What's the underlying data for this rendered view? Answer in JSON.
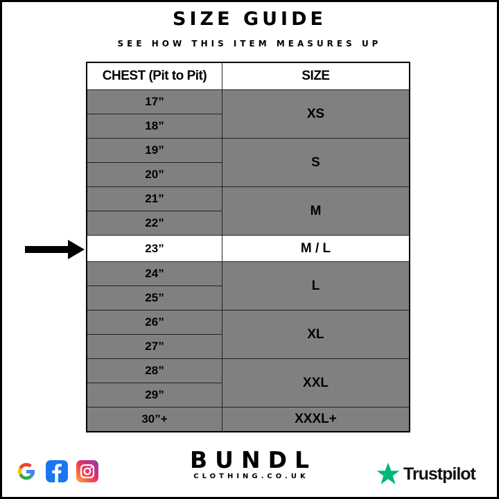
{
  "header": {
    "title": "SIZE GUIDE",
    "subtitle": "SEE HOW THIS ITEM MEASURES UP"
  },
  "table": {
    "columns": [
      "CHEST (Pit to Pit)",
      "SIZE"
    ],
    "groups": [
      {
        "size": "XS",
        "chest": [
          "17”",
          "18”"
        ]
      },
      {
        "size": "S",
        "chest": [
          "19”",
          "20”"
        ]
      },
      {
        "size": "M",
        "chest": [
          "21”",
          "22”"
        ]
      },
      {
        "size": "M / L",
        "chest": [
          "23”"
        ],
        "highlighted": true
      },
      {
        "size": "L",
        "chest": [
          "24”",
          "25”"
        ]
      },
      {
        "size": "XL",
        "chest": [
          "26”",
          "27”"
        ]
      },
      {
        "size": "XXL",
        "chest": [
          "28”",
          "29”"
        ]
      },
      {
        "size": "XXXL+",
        "chest": [
          "30”+"
        ]
      }
    ],
    "colors": {
      "row_bg": "#808080",
      "highlight_bg": "#ffffff"
    }
  },
  "footer": {
    "social_icons": [
      "google-icon",
      "facebook-icon",
      "instagram-icon"
    ],
    "brand": "BUNDL",
    "brand_sub": "CLOTHING.CO.UK",
    "trustpilot": "Trustpilot",
    "trustpilot_color": "#00b67a"
  }
}
